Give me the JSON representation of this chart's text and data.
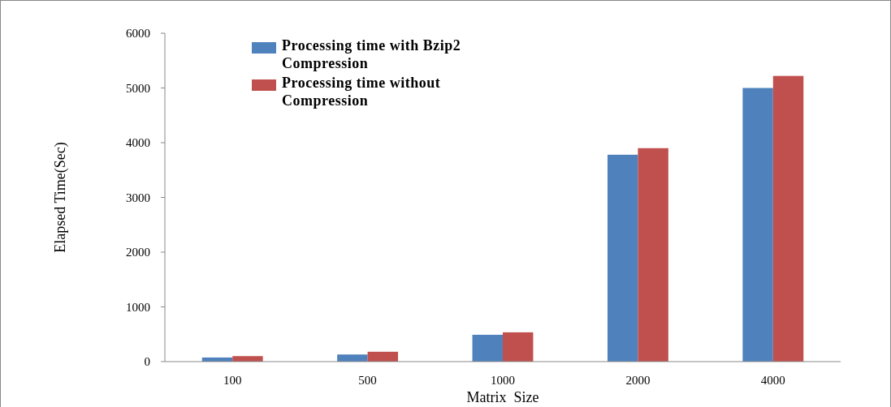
{
  "chart_data": {
    "type": "bar",
    "xlabel": "Matrix  Size",
    "ylabel": "Elapsed Time(Sec)",
    "categories": [
      "100",
      "500",
      "1000",
      "2000",
      "4000"
    ],
    "series": [
      {
        "name": "Processing time with Bzip2 Compression",
        "color": "#4f81bd",
        "values": [
          75,
          130,
          490,
          3780,
          5000
        ]
      },
      {
        "name": "Processing time without Compression",
        "color": "#c0504d",
        "values": [
          100,
          180,
          535,
          3900,
          5220
        ]
      }
    ],
    "ylim": [
      0,
      6000
    ],
    "yticks": [
      0,
      1000,
      2000,
      3000,
      4000,
      5000,
      6000
    ],
    "grid": false,
    "legend": "top left"
  }
}
